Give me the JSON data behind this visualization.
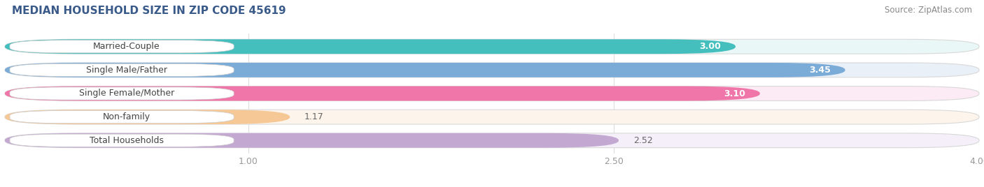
{
  "title": "MEDIAN HOUSEHOLD SIZE IN ZIP CODE 45619",
  "source": "Source: ZipAtlas.com",
  "categories": [
    "Married-Couple",
    "Single Male/Father",
    "Single Female/Mother",
    "Non-family",
    "Total Households"
  ],
  "values": [
    3.0,
    3.45,
    3.1,
    1.17,
    2.52
  ],
  "bar_colors": [
    "#45bfbe",
    "#7bacd8",
    "#f075a8",
    "#f5c896",
    "#c3a8d1"
  ],
  "bar_bg_colors": [
    "#eaf7f7",
    "#eaf0f8",
    "#fceaf4",
    "#fdf5eb",
    "#f4eff8"
  ],
  "xlim": [
    0,
    4.0
  ],
  "xticks": [
    1.0,
    2.5,
    4.0
  ],
  "value_labels": [
    "3.00",
    "3.45",
    "3.10",
    "1.17",
    "2.52"
  ],
  "value_color_inside": [
    "white",
    "white",
    "white",
    "black",
    "black"
  ],
  "label_fontsize": 9,
  "value_fontsize": 9,
  "title_fontsize": 11,
  "source_fontsize": 8.5,
  "background_color": "#ffffff",
  "title_color": "#3a5a8a",
  "source_color": "#888888"
}
